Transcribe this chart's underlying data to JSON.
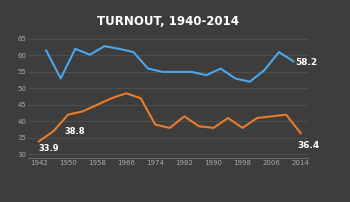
{
  "title": "TURNOUT, 1940-2014",
  "background_color": "#3d3d3d",
  "grid_color": "#555555",
  "presidential_color": "#4da6e8",
  "midterm_color": "#e87c2a",
  "x_ticks": [
    1942,
    1950,
    1958,
    1966,
    1974,
    1982,
    1990,
    1998,
    2006,
    2014
  ],
  "ylim": [
    29,
    67
  ],
  "yticks": [
    30,
    35,
    40,
    45,
    50,
    55,
    60,
    65
  ],
  "presidential_years": [
    1944,
    1948,
    1952,
    1956,
    1960,
    1964,
    1968,
    1972,
    1976,
    1980,
    1984,
    1988,
    1992,
    1996,
    2000,
    2004,
    2008,
    2012
  ],
  "presidential_values": [
    61.5,
    53.0,
    62.0,
    60.2,
    62.8,
    62.0,
    61.0,
    56.0,
    55.0,
    55.0,
    55.0,
    54.0,
    56.0,
    53.0,
    52.0,
    55.5,
    61.0,
    58.2
  ],
  "midterm_years": [
    1942,
    1946,
    1950,
    1954,
    1958,
    1962,
    1966,
    1970,
    1974,
    1978,
    1982,
    1986,
    1990,
    1994,
    1998,
    2002,
    2006,
    2010,
    2014
  ],
  "midterm_values": [
    33.9,
    37.0,
    42.0,
    43.0,
    45.0,
    47.0,
    48.5,
    47.0,
    39.0,
    38.0,
    41.5,
    38.5,
    38.0,
    41.0,
    38.0,
    41.0,
    41.5,
    42.0,
    36.4
  ],
  "xlim": [
    1939,
    2016
  ],
  "ann_33_x": 1942,
  "ann_33_y": 33.9,
  "ann_38_x": 1949,
  "ann_38_y": 38.8,
  "ann_58_x": 2012.5,
  "ann_58_y": 58.2,
  "ann_36_x": 2013,
  "ann_36_y": 36.4
}
